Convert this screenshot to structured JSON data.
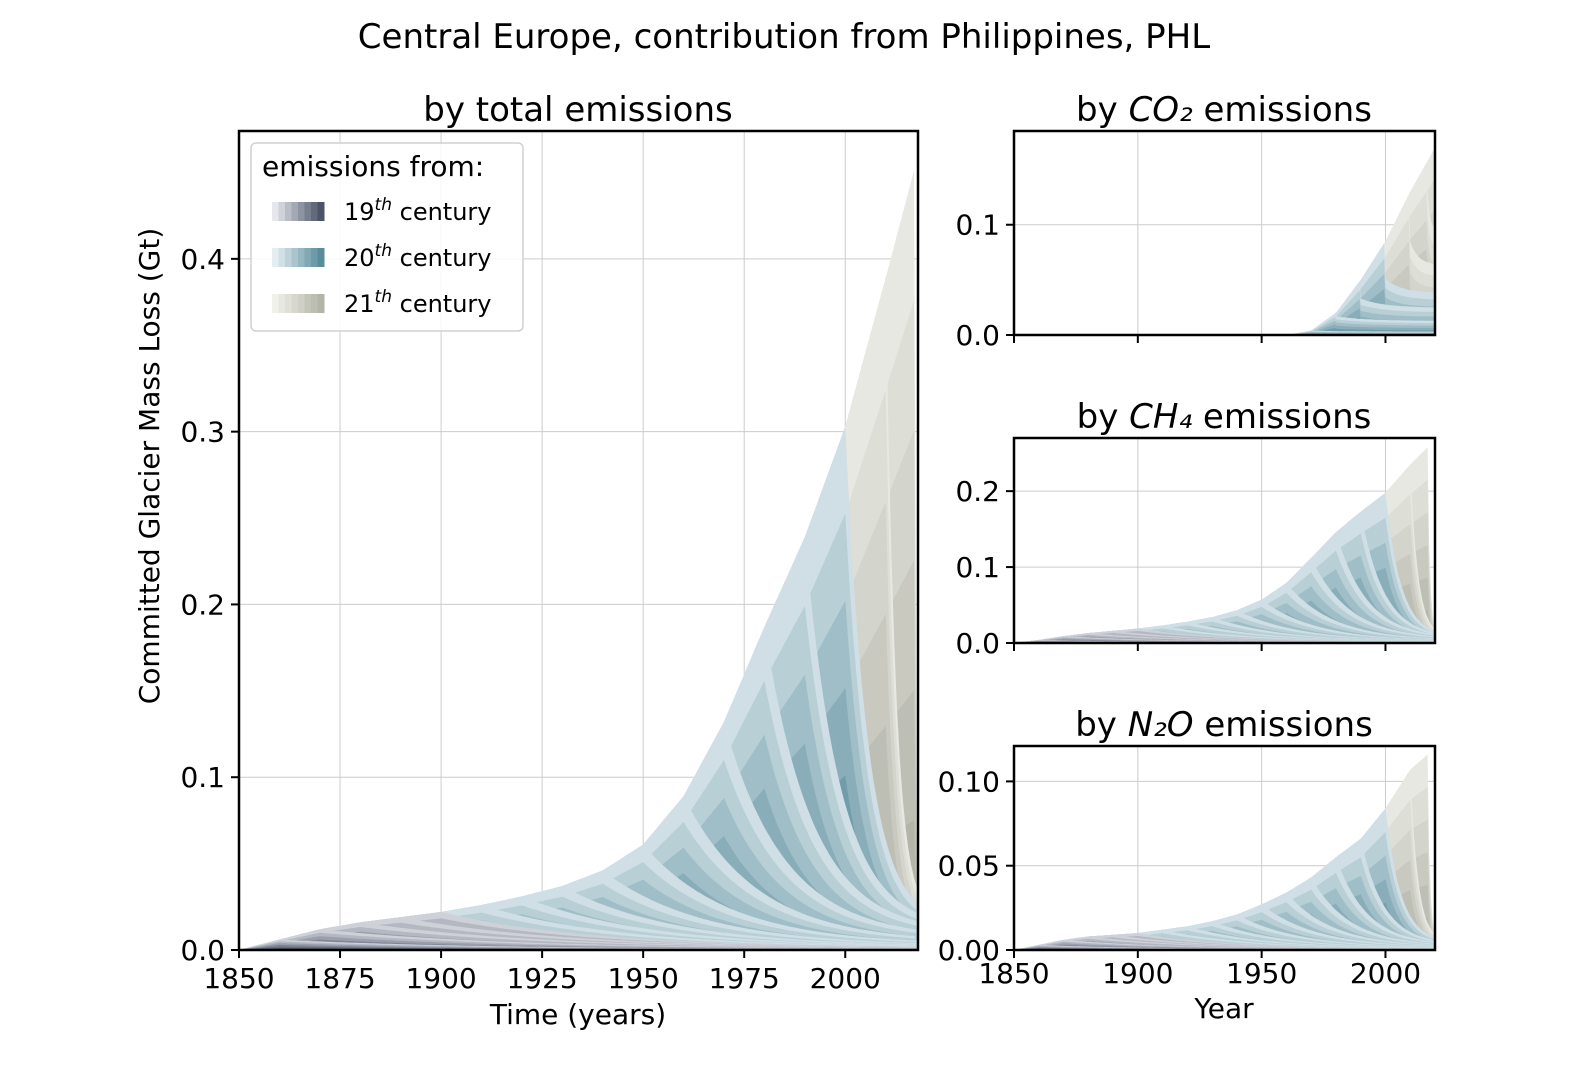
{
  "figure": {
    "title": "Central Europe, contribution from Philippines, PHL"
  },
  "colors": {
    "c19_light": "#e6e7ec",
    "c19_dark": "#4b5468",
    "c20_light": "#e4eef2",
    "c20_dark": "#5a8d9b",
    "c21_light": "#f1f1ec",
    "c21_dark": "#b4b5a8",
    "grid": "#cccccc",
    "axis": "#000000"
  },
  "chart_data": [
    {
      "id": "total",
      "type": "area",
      "title_pre": "by total emissions",
      "title_sub": "",
      "title_post": "",
      "xlabel": "Time (years)",
      "ylabel": "Committed Glacier Mass Loss (Gt)",
      "xlim": [
        1850,
        2018
      ],
      "ylim": [
        0,
        0.474
      ],
      "xticks": [
        1850,
        1875,
        1900,
        1925,
        1950,
        1975,
        2000
      ],
      "yticks": [
        0.0,
        0.1,
        0.2,
        0.3,
        0.4
      ],
      "ytick_labels": [
        "0.0",
        "0.1",
        "0.2",
        "0.3",
        "0.4"
      ],
      "legend": {
        "title": "emissions from:",
        "location": "upper left",
        "entries": [
          {
            "base": "19",
            "sup": "th",
            "suffix": " century"
          },
          {
            "base": "20",
            "sup": "th",
            "suffix": " century"
          },
          {
            "base": "21",
            "sup": "th",
            "suffix": " century"
          }
        ]
      },
      "envelope": [
        [
          1850,
          0.0
        ],
        [
          1860,
          0.006
        ],
        [
          1870,
          0.012
        ],
        [
          1880,
          0.016
        ],
        [
          1890,
          0.019
        ],
        [
          1900,
          0.022
        ],
        [
          1910,
          0.026
        ],
        [
          1920,
          0.031
        ],
        [
          1930,
          0.037
        ],
        [
          1940,
          0.046
        ],
        [
          1950,
          0.061
        ],
        [
          1960,
          0.089
        ],
        [
          1970,
          0.132
        ],
        [
          1980,
          0.187
        ],
        [
          1990,
          0.239
        ],
        [
          2000,
          0.303
        ],
        [
          2010,
          0.389
        ],
        [
          2017,
          0.451
        ]
      ],
      "peaks": [
        [
          1860,
          0.006
        ],
        [
          1870,
          0.012
        ],
        [
          1880,
          0.016
        ],
        [
          1890,
          0.019
        ],
        [
          1900,
          0.022
        ],
        [
          1910,
          0.026
        ],
        [
          1920,
          0.031
        ],
        [
          1930,
          0.037
        ],
        [
          1940,
          0.046
        ],
        [
          1950,
          0.061
        ],
        [
          1960,
          0.089
        ],
        [
          1970,
          0.132
        ],
        [
          1980,
          0.187
        ],
        [
          1990,
          0.239
        ],
        [
          2000,
          0.303
        ],
        [
          2010,
          0.389
        ],
        [
          2017,
          0.451
        ]
      ],
      "end_frac": 0.05
    },
    {
      "id": "co2",
      "type": "area",
      "title_pre": "by ",
      "title_sub": "CO₂",
      "title_post": " emissions",
      "xlabel": "",
      "ylabel": "",
      "xlim": [
        1850,
        2020
      ],
      "ylim": [
        0,
        0.185
      ],
      "xticks": [
        1850,
        1900,
        1950,
        2000
      ],
      "show_xticklabels": false,
      "yticks": [
        0.0,
        0.1
      ],
      "ytick_labels": [
        "0.0",
        "0.1"
      ],
      "envelope": [
        [
          1850,
          0.0
        ],
        [
          1950,
          0.0
        ],
        [
          1960,
          0.0
        ],
        [
          1970,
          0.004
        ],
        [
          1980,
          0.02
        ],
        [
          1990,
          0.05
        ],
        [
          2000,
          0.085
        ],
        [
          2010,
          0.13
        ],
        [
          2020,
          0.17
        ]
      ],
      "peaks": [
        [
          1970,
          0.004
        ],
        [
          1980,
          0.017
        ],
        [
          1990,
          0.033
        ],
        [
          2000,
          0.051
        ],
        [
          2010,
          0.085
        ],
        [
          2017,
          0.128
        ],
        [
          2020,
          0.17
        ]
      ],
      "end_frac": 0.75
    },
    {
      "id": "ch4",
      "type": "area",
      "title_pre": "by ",
      "title_sub": "CH₄",
      "title_post": " emissions",
      "xlabel": "",
      "ylabel": "",
      "xlim": [
        1850,
        2020
      ],
      "ylim": [
        0,
        0.27
      ],
      "xticks": [
        1850,
        1900,
        1950,
        2000
      ],
      "show_xticklabels": false,
      "yticks": [
        0.0,
        0.1,
        0.2
      ],
      "ytick_labels": [
        "0.0",
        "0.1",
        "0.2"
      ],
      "envelope": [
        [
          1850,
          0.0
        ],
        [
          1860,
          0.004
        ],
        [
          1870,
          0.009
        ],
        [
          1880,
          0.013
        ],
        [
          1890,
          0.016
        ],
        [
          1900,
          0.019
        ],
        [
          1910,
          0.023
        ],
        [
          1920,
          0.028
        ],
        [
          1930,
          0.034
        ],
        [
          1940,
          0.043
        ],
        [
          1950,
          0.057
        ],
        [
          1960,
          0.079
        ],
        [
          1970,
          0.112
        ],
        [
          1980,
          0.146
        ],
        [
          1990,
          0.173
        ],
        [
          2000,
          0.198
        ],
        [
          2010,
          0.235
        ],
        [
          2017,
          0.258
        ]
      ],
      "peaks": [
        [
          1860,
          0.004
        ],
        [
          1870,
          0.009
        ],
        [
          1880,
          0.013
        ],
        [
          1890,
          0.016
        ],
        [
          1900,
          0.019
        ],
        [
          1910,
          0.023
        ],
        [
          1920,
          0.028
        ],
        [
          1930,
          0.034
        ],
        [
          1940,
          0.043
        ],
        [
          1950,
          0.057
        ],
        [
          1960,
          0.079
        ],
        [
          1970,
          0.112
        ],
        [
          1980,
          0.146
        ],
        [
          1990,
          0.173
        ],
        [
          2000,
          0.198
        ],
        [
          2010,
          0.235
        ],
        [
          2017,
          0.258
        ]
      ],
      "end_frac": 0.04
    },
    {
      "id": "n2o",
      "type": "area",
      "title_pre": "by ",
      "title_sub": "N₂O",
      "title_post": " emissions",
      "xlabel": "Year",
      "ylabel": "",
      "xlim": [
        1850,
        2020
      ],
      "ylim": [
        0,
        0.121
      ],
      "xticks": [
        1850,
        1900,
        1950,
        2000
      ],
      "show_xticklabels": true,
      "yticks": [
        0.0,
        0.05,
        0.1
      ],
      "ytick_labels": [
        "0.00",
        "0.05",
        "0.10"
      ],
      "envelope": [
        [
          1850,
          0.0
        ],
        [
          1860,
          0.003
        ],
        [
          1870,
          0.006
        ],
        [
          1880,
          0.008
        ],
        [
          1890,
          0.009
        ],
        [
          1900,
          0.01
        ],
        [
          1910,
          0.012
        ],
        [
          1920,
          0.014
        ],
        [
          1930,
          0.017
        ],
        [
          1940,
          0.021
        ],
        [
          1950,
          0.027
        ],
        [
          1960,
          0.034
        ],
        [
          1970,
          0.043
        ],
        [
          1980,
          0.055
        ],
        [
          1990,
          0.066
        ],
        [
          2000,
          0.084
        ],
        [
          2010,
          0.107
        ],
        [
          2017,
          0.116
        ]
      ],
      "peaks": [
        [
          1860,
          0.003
        ],
        [
          1870,
          0.006
        ],
        [
          1880,
          0.008
        ],
        [
          1890,
          0.009
        ],
        [
          1900,
          0.01
        ],
        [
          1910,
          0.012
        ],
        [
          1920,
          0.014
        ],
        [
          1930,
          0.017
        ],
        [
          1940,
          0.021
        ],
        [
          1950,
          0.027
        ],
        [
          1960,
          0.034
        ],
        [
          1970,
          0.043
        ],
        [
          1980,
          0.055
        ],
        [
          1990,
          0.066
        ],
        [
          2000,
          0.084
        ],
        [
          2010,
          0.107
        ],
        [
          2017,
          0.116
        ]
      ],
      "end_frac": 0.05
    }
  ]
}
